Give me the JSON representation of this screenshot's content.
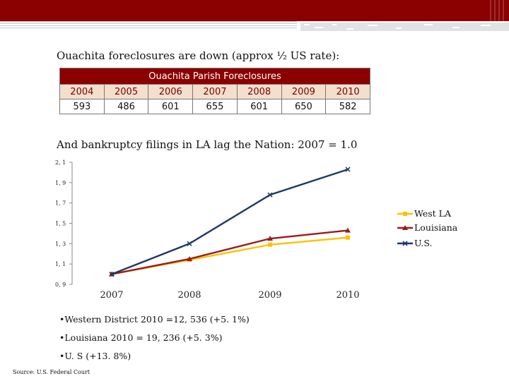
{
  "heading_foreclosures": "Ouachita foreclosures are down (approx ½ US rate):",
  "table": {
    "title": "Ouachita Parish Foreclosures",
    "years": [
      "2004",
      "2005",
      "2006",
      "2007",
      "2008",
      "2009",
      "2010"
    ],
    "values": [
      "593",
      "486",
      "601",
      "655",
      "601",
      "650",
      "582"
    ]
  },
  "heading_bankruptcy": "And bankruptcy filings in LA lag the Nation:  2007 = 1.0",
  "chart_data": {
    "type": "line",
    "x": [
      "2007",
      "2008",
      "2009",
      "2010"
    ],
    "y_ticks": [
      "2, 1",
      "1, 9",
      "1, 7",
      "1, 5",
      "1, 3",
      "1, 1",
      "0, 9"
    ],
    "ylim": [
      0.9,
      2.1
    ],
    "grid": false,
    "legend_position": "right",
    "series": [
      {
        "name": "West LA",
        "values": [
          1.0,
          1.14,
          1.29,
          1.36
        ],
        "color": "#ffc000",
        "marker": "square"
      },
      {
        "name": "Louisiana",
        "values": [
          1.0,
          1.15,
          1.35,
          1.43
        ],
        "color": "#9b1c1c",
        "marker": "triangle"
      },
      {
        "name": "U.S.",
        "values": [
          1.0,
          1.3,
          1.78,
          2.03
        ],
        "color": "#1f3864",
        "marker": "x"
      }
    ]
  },
  "bullets": [
    "•Western District 2010 =12, 536 (+5. 1%)",
    "•Louisiana 2010 = 19, 236 (+5. 3%)",
    "•U. S (+13. 8%)"
  ],
  "source": "Source: U.S. Federal Court",
  "colors": {
    "banner": "#8b0000",
    "table_header": "#8b0000",
    "table_year_bg": "#f4dfcd"
  }
}
